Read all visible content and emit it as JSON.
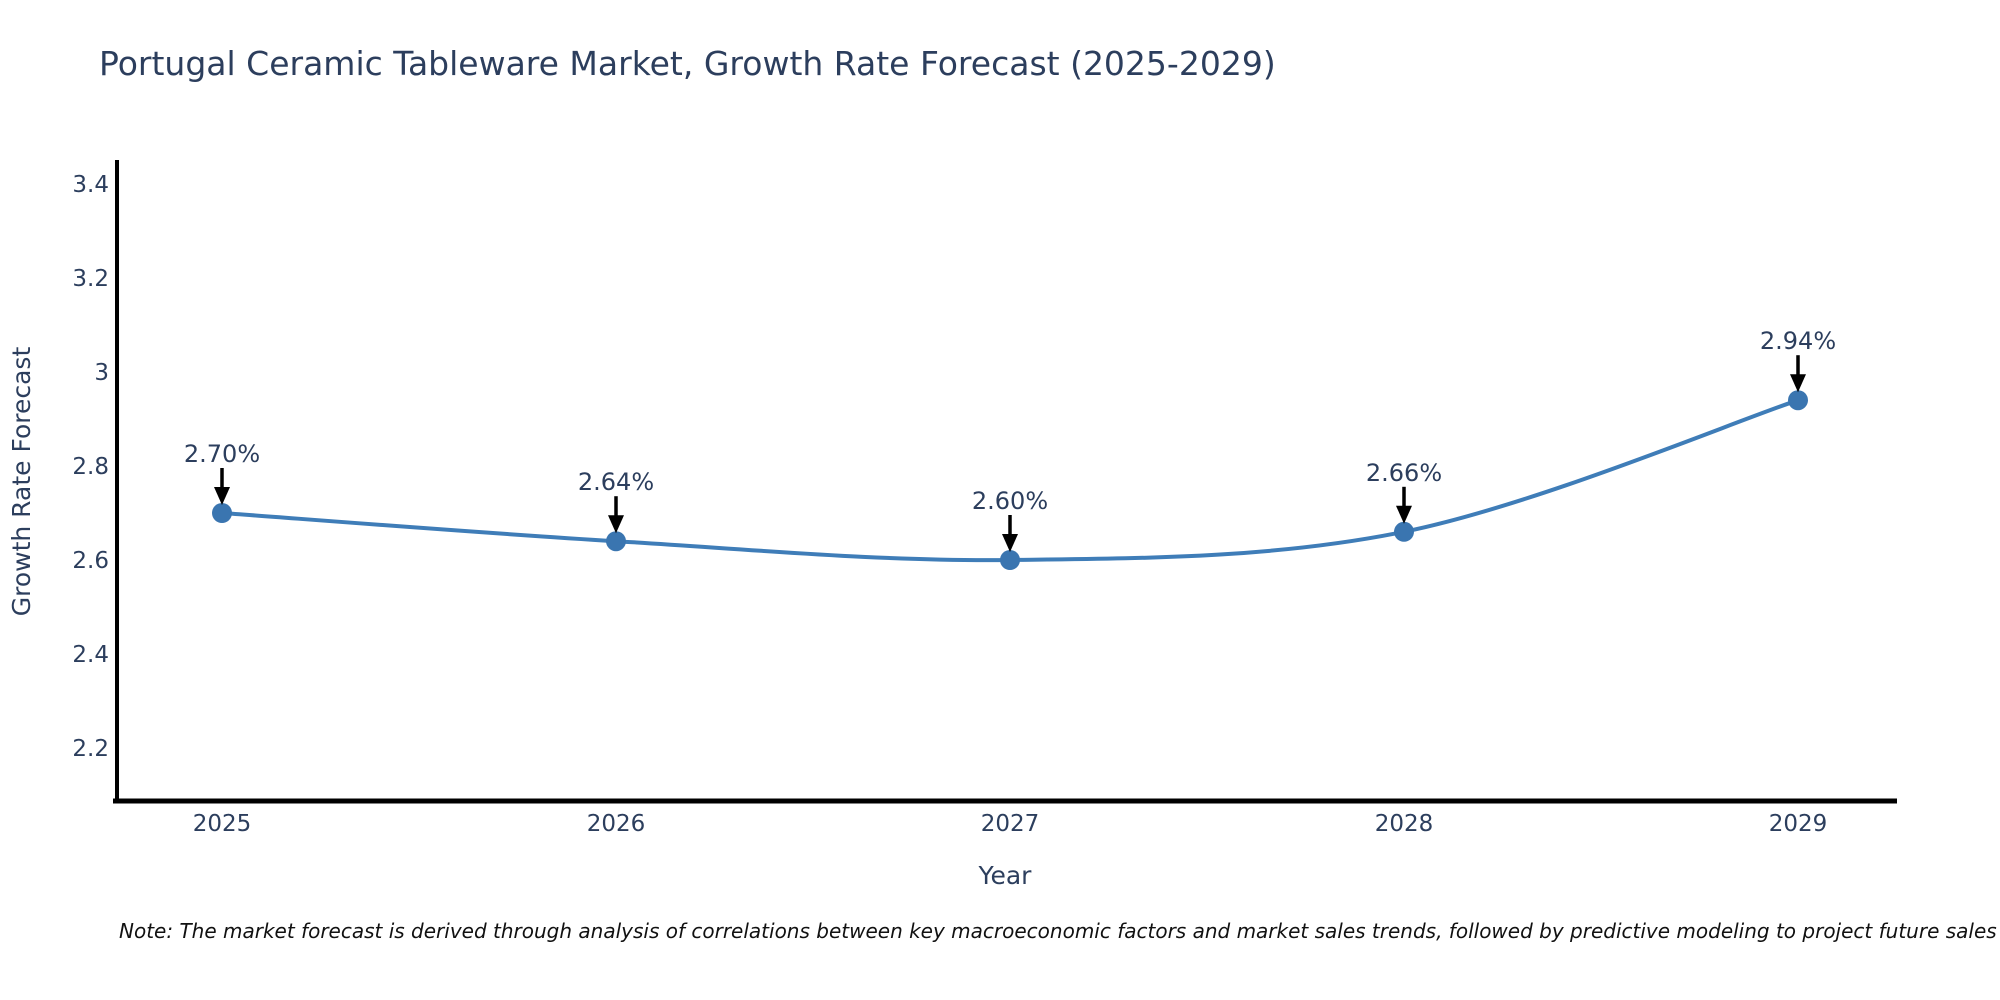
{
  "chart": {
    "title": "Portugal Ceramic Tableware Market, Growth Rate Forecast (2025-2029)"
  },
  "note": {
    "text": "Note: The market forecast is derived through analysis of correlations between key macroeconomic factors and market sales trends, followed by predictive modeling to project future sales"
  },
  "chart_data": {
    "type": "line",
    "title": "Portugal Ceramic Tableware Market, Growth Rate Forecast (2025-2029)",
    "x": [
      2025,
      2026,
      2027,
      2028,
      2029
    ],
    "series": [
      {
        "name": "Growth Rate Forecast",
        "values": [
          2.7,
          2.64,
          2.6,
          2.66,
          2.94
        ]
      }
    ],
    "point_labels": [
      "2.70%",
      "2.64%",
      "2.60%",
      "2.66%",
      "2.94%"
    ],
    "xlabel": "Year",
    "ylabel": "Growth Rate Forecast",
    "xticks": [
      "2025",
      "2026",
      "2027",
      "2028",
      "2029"
    ],
    "yticks": [
      "3.4",
      "3.2",
      "3",
      "2.8",
      "2.6",
      "2.4",
      "2.2"
    ],
    "ytick_values": [
      3.4,
      3.2,
      3.0,
      2.8,
      2.6,
      2.4,
      2.2
    ],
    "ylim": [
      2.09,
      3.46
    ],
    "grid": false,
    "legend_position": "none",
    "line_shape": "spline",
    "colors": {
      "line": "#3f7db8",
      "marker": "#3a75b0",
      "axis": "#000000",
      "text": "#2c3e5d",
      "annotation_arrow": "#000000"
    }
  }
}
